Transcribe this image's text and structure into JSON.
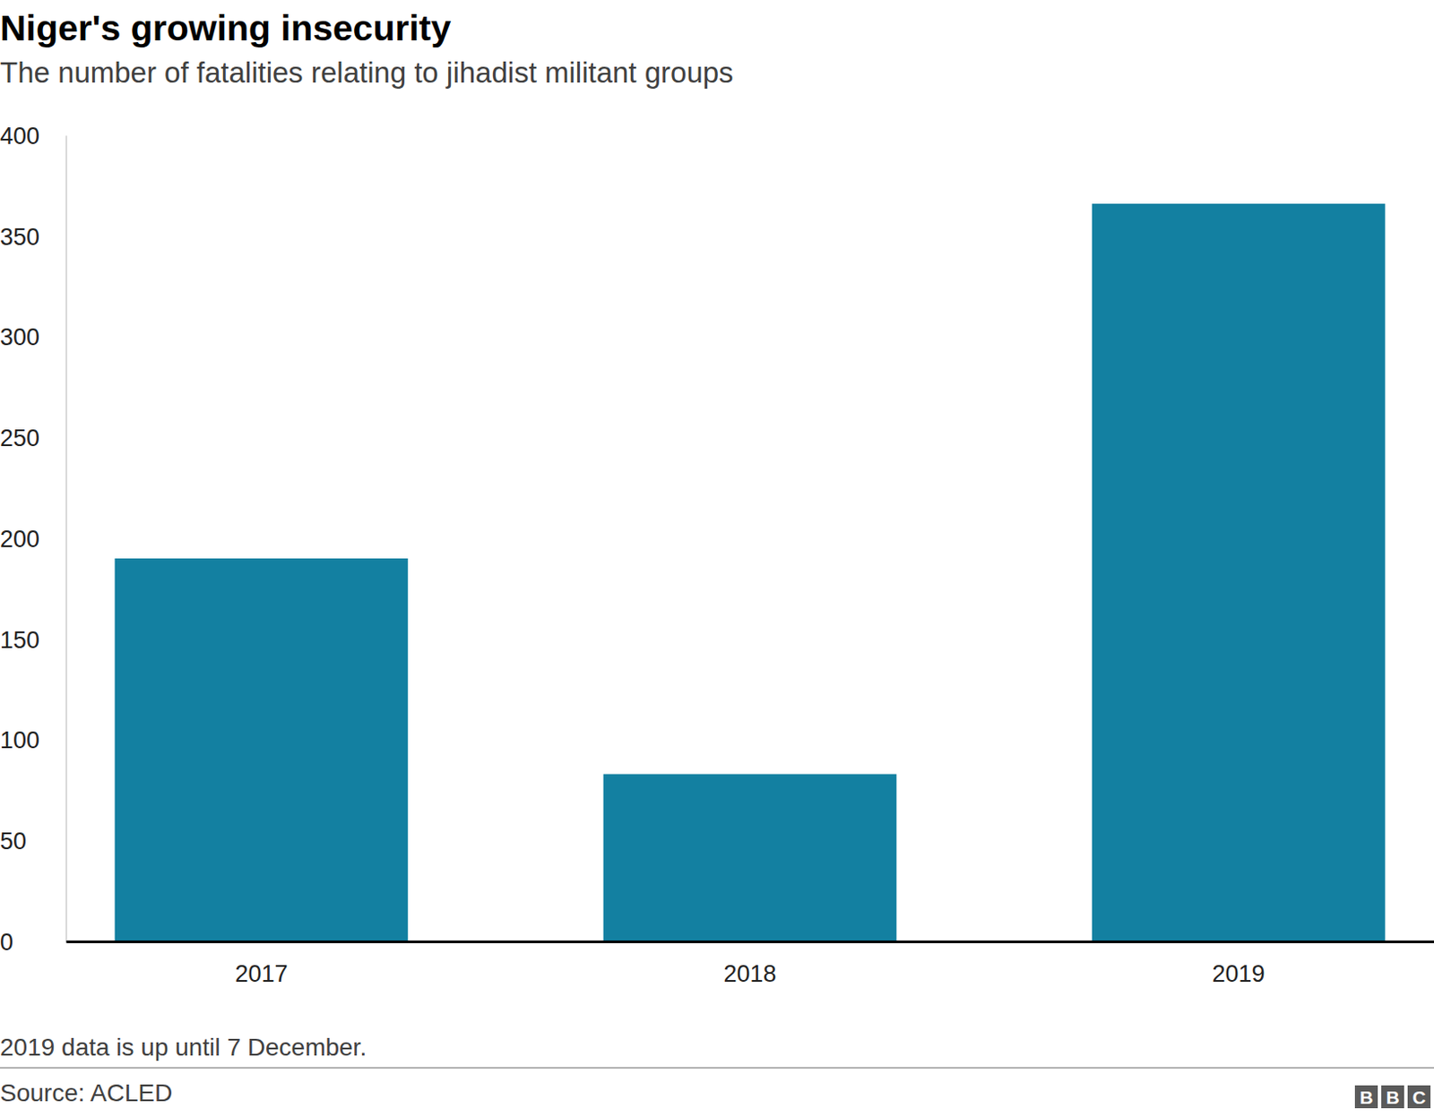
{
  "chart_data": {
    "type": "bar",
    "title": "Niger's growing insecurity",
    "subtitle": "The number of fatalities relating to jihadist militant groups",
    "categories": [
      "2017",
      "2018",
      "2019"
    ],
    "values": [
      190,
      83,
      366
    ],
    "color": "#1380a1",
    "ylim": [
      0,
      400
    ],
    "yticks": [
      0,
      50,
      100,
      150,
      200,
      250,
      300,
      350,
      400
    ],
    "grid": false,
    "note": "2019 data is up until 7 December.",
    "source": "Source: ACLED",
    "logo": "BBC"
  }
}
